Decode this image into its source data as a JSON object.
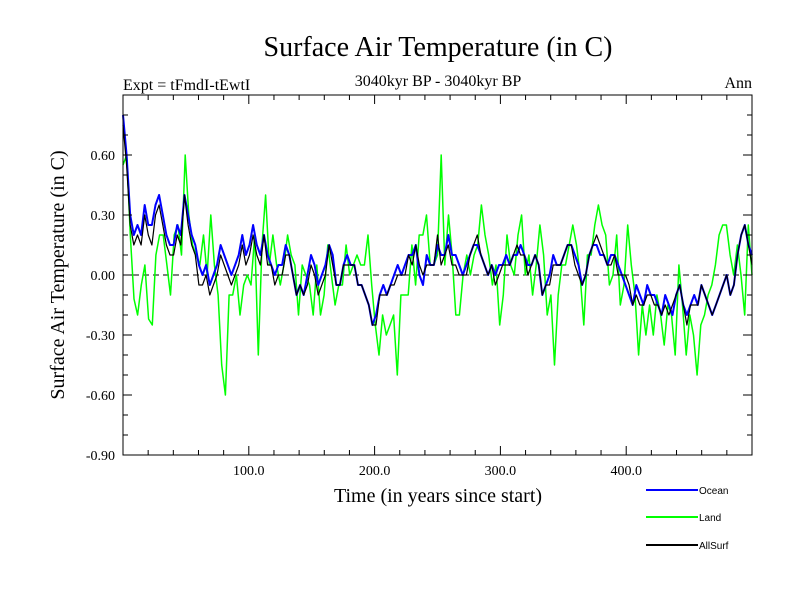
{
  "chart_data": {
    "type": "line",
    "title": "Surface Air Temperature (in C)",
    "subtitle_left": "Expt = tFmdI-tEwtI",
    "subtitle_center": "3040kyr BP - 3040kyr BP",
    "subtitle_right": "Ann",
    "xlabel": "Time (in years since start)",
    "ylabel": "Surface Air Temperature (in C)",
    "xlim": [
      0,
      500
    ],
    "ylim": [
      -0.9,
      0.9
    ],
    "xticks": [
      100,
      200,
      300,
      400
    ],
    "xtick_labels": [
      "100.0",
      "200.0",
      "300.0",
      "400.0"
    ],
    "yticks": [
      -0.9,
      -0.6,
      -0.3,
      0,
      0.3,
      0.6
    ],
    "ytick_labels": [
      "-0.90",
      "-0.60",
      "-0.30",
      "0.00",
      "0.30",
      "0.60"
    ],
    "zero_line": 0,
    "colors": {
      "Ocean": "#0000ff",
      "Land": "#00ff00",
      "AllSurf": "#000000",
      "zero": "#000000"
    },
    "series": [
      {
        "name": "Land",
        "values": [
          0.55,
          0.6,
          0.2,
          -0.12,
          -0.2,
          -0.05,
          0.05,
          -0.22,
          -0.25,
          0.1,
          0.2,
          0.2,
          0.05,
          -0.1,
          0.2,
          0.25,
          0.1,
          0.6,
          0.3,
          0.15,
          0.1,
          0.05,
          0.2,
          0.0,
          0.3,
          0.05,
          -0.1,
          -0.45,
          -0.6,
          -0.1,
          -0.1,
          0.0,
          -0.2,
          -0.05,
          0.0,
          -0.05,
          0.2,
          -0.4,
          0.15,
          0.4,
          0.05,
          0.2,
          0.05,
          -0.05,
          0.05,
          0.2,
          0.1,
          0.05,
          -0.2,
          0.05,
          0.0,
          -0.05,
          -0.2,
          0.05,
          -0.2,
          -0.1,
          0.15,
          0.0,
          -0.15,
          -0.05,
          -0.05,
          0.15,
          0.0,
          0.05,
          0.1,
          0.05,
          0.05,
          0.2,
          -0.05,
          -0.25,
          -0.4,
          -0.2,
          -0.3,
          -0.25,
          -0.2,
          -0.5,
          -0.1,
          -0.1,
          -0.1,
          0.15,
          -0.05,
          0.2,
          0.2,
          0.3,
          0.05,
          0.05,
          0.1,
          0.6,
          0.05,
          0.3,
          0.1,
          -0.2,
          -0.2,
          0.0,
          0.1,
          0.0,
          0.1,
          0.15,
          0.35,
          0.2,
          0.1,
          -0.05,
          0.05,
          -0.25,
          -0.1,
          0.2,
          0.05,
          0.0,
          0.2,
          0.3,
          0.0,
          0.1,
          -0.1,
          0.05,
          0.25,
          0.1,
          -0.2,
          -0.1,
          -0.45,
          -0.1,
          0.05,
          0.05,
          0.15,
          0.25,
          0.15,
          0.0,
          -0.25,
          0.1,
          0.1,
          0.25,
          0.35,
          0.25,
          0.2,
          -0.05,
          0.0,
          0.2,
          -0.15,
          -0.05,
          0.25,
          0.05,
          -0.1,
          -0.4,
          -0.15,
          -0.3,
          -0.15,
          -0.3,
          -0.1,
          -0.2,
          -0.35,
          -0.15,
          -0.2,
          -0.4,
          0.05,
          -0.15,
          -0.4,
          -0.2,
          -0.3,
          -0.5,
          -0.25,
          -0.2,
          -0.1,
          -0.05,
          0.05,
          0.2,
          0.25,
          0.25,
          0.1,
          0.0,
          0.15,
          0.0,
          -0.2,
          0.25,
          0.0
        ]
      },
      {
        "name": "Ocean",
        "values": [
          0.8,
          0.6,
          0.3,
          0.2,
          0.25,
          0.2,
          0.35,
          0.25,
          0.25,
          0.35,
          0.4,
          0.3,
          0.2,
          0.15,
          0.15,
          0.25,
          0.2,
          0.4,
          0.3,
          0.2,
          0.15,
          0.05,
          0.0,
          0.05,
          -0.05,
          0.0,
          0.05,
          0.15,
          0.1,
          0.05,
          0.0,
          0.05,
          0.1,
          0.2,
          0.1,
          0.15,
          0.25,
          0.15,
          0.1,
          0.2,
          0.1,
          0.05,
          0.0,
          0.05,
          0.05,
          0.15,
          0.1,
          0.0,
          -0.1,
          -0.05,
          -0.1,
          0.0,
          0.1,
          0.05,
          -0.05,
          0.0,
          0.05,
          0.15,
          0.1,
          -0.05,
          -0.05,
          0.05,
          0.1,
          0.05,
          0.05,
          -0.05,
          -0.05,
          -0.1,
          -0.15,
          -0.25,
          -0.2,
          -0.1,
          -0.05,
          -0.1,
          -0.05,
          0.0,
          0.05,
          0.0,
          0.05,
          0.1,
          0.1,
          0.15,
          0.0,
          -0.05,
          0.1,
          0.05,
          0.05,
          0.15,
          0.1,
          0.1,
          0.2,
          0.1,
          0.1,
          0.05,
          0.0,
          0.05,
          0.1,
          0.15,
          0.15,
          0.1,
          0.05,
          0.0,
          0.05,
          0.0,
          0.05,
          0.05,
          0.1,
          0.05,
          0.1,
          0.1,
          0.15,
          0.1,
          0.05,
          0.05,
          0.1,
          0.05,
          -0.1,
          -0.05,
          0.0,
          0.1,
          0.05,
          0.05,
          0.1,
          0.15,
          0.15,
          0.1,
          0.05,
          -0.05,
          0.0,
          0.1,
          0.15,
          0.15,
          0.1,
          0.1,
          0.05,
          0.1,
          0.1,
          0.05,
          0.0,
          -0.05,
          -0.1,
          -0.15,
          -0.05,
          -0.1,
          -0.15,
          -0.05,
          -0.1,
          -0.1,
          -0.15,
          -0.2,
          -0.1,
          -0.15,
          -0.2,
          -0.1,
          -0.05,
          -0.15,
          -0.2,
          -0.15,
          -0.1,
          -0.15,
          -0.05,
          -0.1,
          -0.15,
          -0.2,
          -0.15,
          -0.1,
          -0.05,
          0.0,
          -0.1,
          -0.05,
          0.1,
          0.2,
          0.25,
          0.15,
          0.1
        ]
      },
      {
        "name": "AllSurf",
        "values": [
          0.75,
          0.55,
          0.25,
          0.15,
          0.2,
          0.15,
          0.3,
          0.2,
          0.15,
          0.3,
          0.35,
          0.25,
          0.15,
          0.1,
          0.1,
          0.2,
          0.15,
          0.4,
          0.25,
          0.15,
          0.1,
          -0.05,
          -0.05,
          0.0,
          -0.1,
          -0.05,
          0.0,
          0.1,
          0.05,
          0.0,
          -0.05,
          0.0,
          0.05,
          0.15,
          0.05,
          0.1,
          0.2,
          0.1,
          0.05,
          0.2,
          0.05,
          0.05,
          -0.05,
          0.0,
          0.0,
          0.1,
          0.1,
          0.0,
          -0.1,
          -0.05,
          -0.1,
          -0.05,
          0.05,
          0.0,
          -0.1,
          -0.05,
          0.0,
          0.15,
          0.05,
          -0.05,
          -0.05,
          0.05,
          0.05,
          0.05,
          0.05,
          -0.05,
          -0.05,
          -0.1,
          -0.15,
          -0.25,
          -0.25,
          -0.1,
          -0.1,
          -0.1,
          -0.05,
          -0.05,
          0.0,
          0.0,
          0.0,
          0.1,
          0.05,
          0.15,
          0.05,
          0.0,
          0.05,
          0.05,
          0.05,
          0.2,
          0.05,
          0.1,
          0.15,
          0.05,
          0.05,
          0.0,
          0.0,
          0.0,
          0.1,
          0.15,
          0.2,
          0.1,
          0.05,
          0.0,
          0.05,
          -0.05,
          0.0,
          0.05,
          0.05,
          0.05,
          0.1,
          0.15,
          0.1,
          0.1,
          0.0,
          0.05,
          0.1,
          0.05,
          -0.1,
          -0.05,
          -0.05,
          0.05,
          0.05,
          0.05,
          0.1,
          0.15,
          0.15,
          0.05,
          0.0,
          -0.05,
          0.0,
          0.1,
          0.15,
          0.2,
          0.15,
          0.1,
          0.05,
          0.05,
          0.1,
          0.0,
          0.0,
          0.0,
          -0.05,
          -0.15,
          -0.1,
          -0.15,
          -0.15,
          -0.1,
          -0.1,
          -0.15,
          -0.15,
          -0.2,
          -0.15,
          -0.2,
          -0.15,
          -0.1,
          -0.05,
          -0.15,
          -0.25,
          -0.15,
          -0.15,
          -0.15,
          -0.05,
          -0.1,
          -0.15,
          -0.2,
          -0.15,
          -0.1,
          -0.05,
          0.0,
          -0.1,
          -0.05,
          0.1,
          0.2,
          0.25,
          0.15,
          0.05
        ]
      }
    ],
    "legend": {
      "placement": "bottom-right",
      "entries": [
        {
          "label": "Ocean",
          "series": "Ocean"
        },
        {
          "label": "Land",
          "series": "Land"
        },
        {
          "label": "AllSurf",
          "series": "AllSurf"
        }
      ]
    }
  }
}
